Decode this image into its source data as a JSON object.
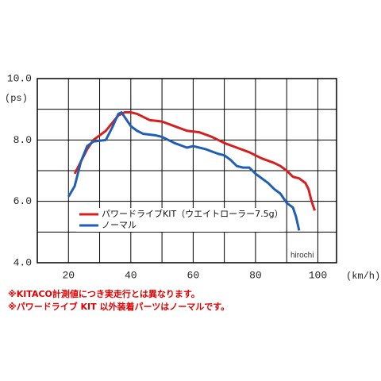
{
  "chart_data": {
    "type": "line",
    "y_unit": "(ps)",
    "x_unit": "(km/h)",
    "xlim": [
      10,
      106
    ],
    "xticks": [
      20,
      40,
      60,
      80,
      100
    ],
    "xminor": [
      30,
      50,
      70,
      90
    ],
    "ylim": [
      4,
      10
    ],
    "yticks": [
      {
        "value": 4,
        "label": "4.0"
      },
      {
        "value": 6,
        "label": "6.0"
      },
      {
        "value": 8,
        "label": "8.0"
      },
      {
        "value": 10,
        "label": "10.0"
      }
    ],
    "yminor": [
      5,
      7,
      9
    ],
    "grid": true,
    "series": [
      {
        "name": "パワードライブKIT（ウエイトローラー7.5g）",
        "color": "#d42020",
        "x": [
          22,
          24,
          26,
          28,
          30,
          32,
          34,
          36,
          38,
          40,
          42,
          44,
          46,
          50,
          54,
          58,
          62,
          66,
          70,
          74,
          78,
          82,
          86,
          88,
          90,
          92,
          94,
          96,
          97,
          98,
          99
        ],
        "values": [
          6.9,
          7.3,
          7.7,
          8.0,
          8.15,
          8.3,
          8.55,
          8.8,
          8.9,
          8.9,
          8.85,
          8.75,
          8.65,
          8.6,
          8.45,
          8.3,
          8.25,
          8.1,
          7.9,
          7.75,
          7.6,
          7.4,
          7.25,
          7.15,
          7.0,
          6.8,
          6.75,
          6.6,
          6.4,
          6.0,
          5.7
        ]
      },
      {
        "name": "ノーマル",
        "color": "#1f5fb4",
        "x": [
          20,
          22,
          24,
          26,
          28,
          32,
          34,
          36,
          37,
          38,
          40,
          42,
          44,
          48,
          50,
          54,
          58,
          60,
          64,
          68,
          70,
          72,
          74,
          76,
          78,
          80,
          84,
          86,
          88,
          90,
          92,
          93,
          94
        ],
        "values": [
          6.15,
          6.5,
          7.3,
          7.8,
          7.95,
          8.0,
          8.4,
          8.85,
          8.9,
          8.75,
          8.45,
          8.3,
          8.2,
          8.15,
          8.1,
          7.9,
          7.75,
          7.8,
          7.7,
          7.55,
          7.5,
          7.35,
          7.15,
          7.1,
          7.1,
          6.9,
          6.6,
          6.4,
          6.25,
          5.95,
          5.8,
          5.5,
          5.05
        ]
      }
    ],
    "watermark": "hirochi",
    "notes": [
      "※KITACO計測値につき実走行とは異なります。",
      "※パワードライブ KIT 以外装着パーツはノーマルです。"
    ]
  }
}
